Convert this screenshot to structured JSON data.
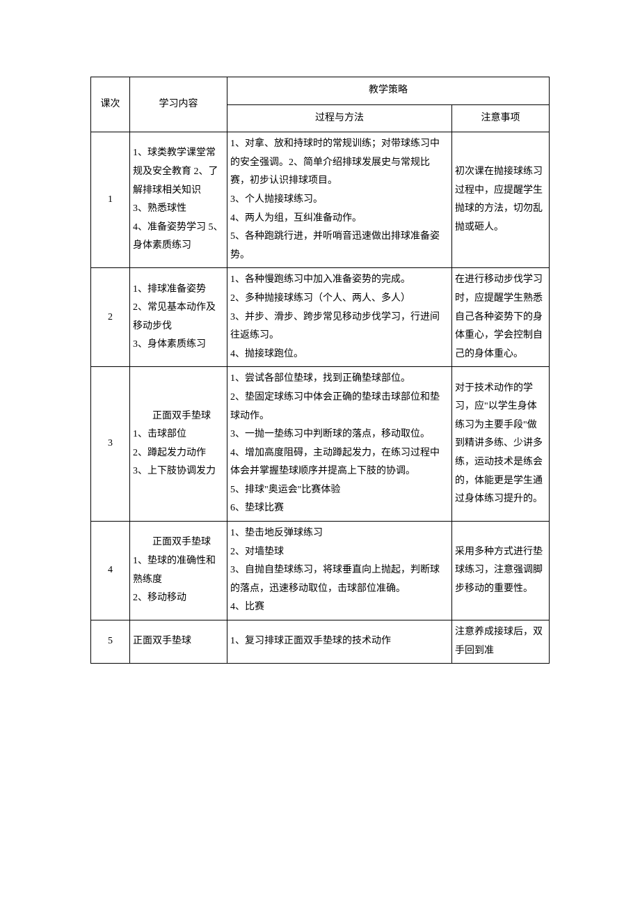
{
  "headers": {
    "lesson": "课次",
    "content": "学习内容",
    "strategy": "教学策略",
    "method": "过程与方法",
    "notes": "注意事项"
  },
  "rows": [
    {
      "num": "1",
      "content": "1、球类教学课堂常规及安全教育 2、了解排球相关知识\n3、熟悉球性\n4、准备姿势学习 5、身体素质练习",
      "method": "1、对拿、放和持球时的常规训练；对带球练习中的安全强调。2、简单介绍排球发展史与常规比赛，初步认识排球项目。\n3、个人抛接球练习。\n4、两人为组，互纠准备动作。\n5、各种跑跳行进，并听哨音迅速做出排球准备姿势。",
      "notes": "初次课在抛接球练习过程中，应提醒学生抛球的方法，切勿乱抛或砸人。"
    },
    {
      "num": "2",
      "content": "1、排球准备姿势\n2、常见基本动作及移动步伐\n3、身体素质练习",
      "method": "1、各种慢跑练习中加入准备姿势的完成。\n2、多种抛接球练习（个人、两人、多人）\n3、并步、滑步、跨步常见移动步伐学习，行进间往返练习。\n4、抛接球跑位。",
      "notes": "在进行移动步伐学习时，应提醒学生熟悉自己各种姿势下的身体重心，学会控制自己的身体重心。"
    },
    {
      "num": "3",
      "content": "　　正面双手垫球\n1、击球部位\n2、蹲起发力动作\n3、上下肢协调发力",
      "method": "1、尝试各部位垫球，找到正确垫球部位。\n2、垫固定球练习中体会正确的垫球击球部位和垫球动作。\n3、一抛一垫练习中判断球的落点，移动取位。\n4、增加高度阻碍，主动蹲起发力，在练习过程中体会并掌握垫球顺序并提高上下肢的协调。\n5、排球\"奥运会\"比赛体验\n6、垫球比赛",
      "notes": "对于技术动作的学习，应\"以学生身体练习为主要手段\"做到精讲多练、少讲多练，运动技术是练会的，体能更是学生通过身体练习提升的。"
    },
    {
      "num": "4",
      "content": "　　正面双手垫球\n1、垫球的准确性和熟练度\n2、移动移动",
      "method": "1、垫击地反弹球练习\n2、对墙垫球\n3、自抛自垫球练习，将球垂直向上抛起，判断球的落点，迅速移动取位，击球部位准确。\n4、比赛",
      "notes": "采用多种方式进行垫球练习，注意强调脚步移动的重要性。"
    },
    {
      "num": "5",
      "content": "正面双手垫球",
      "method": "1、复习排球正面双手垫球的技术动作",
      "notes": "注意养成接球后，双手回到准"
    }
  ]
}
